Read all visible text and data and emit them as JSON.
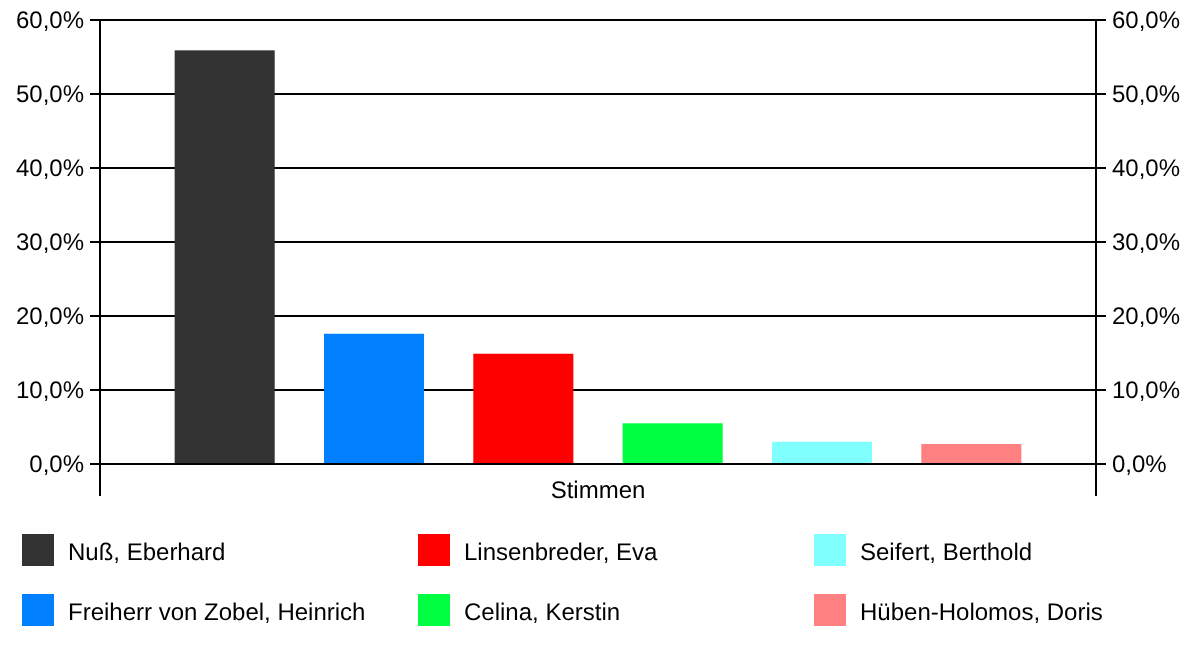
{
  "chart_data": {
    "type": "bar",
    "categories": [
      "Stimmen"
    ],
    "series": [
      {
        "name": "Nuß, Eberhard",
        "color": "#333333",
        "values": [
          55.9
        ]
      },
      {
        "name": "Freiherr von Zobel, Heinrich",
        "color": "#0080ff",
        "values": [
          17.6
        ]
      },
      {
        "name": "Linsenbreder, Eva",
        "color": "#ff0000",
        "values": [
          14.9
        ]
      },
      {
        "name": "Celina, Kerstin",
        "color": "#00ff40",
        "values": [
          5.5
        ]
      },
      {
        "name": "Seifert, Berthold",
        "color": "#80ffff",
        "values": [
          3.0
        ]
      },
      {
        "name": "Hüben-Holomos, Doris",
        "color": "#ff8080",
        "values": [
          2.7
        ]
      }
    ],
    "ylim": [
      0,
      60
    ],
    "yticks": [
      {
        "value": 0,
        "label": "0,0%"
      },
      {
        "value": 10,
        "label": "10,0%"
      },
      {
        "value": 20,
        "label": "20,0%"
      },
      {
        "value": 30,
        "label": "30,0%"
      },
      {
        "value": 40,
        "label": "40,0%"
      },
      {
        "value": 50,
        "label": "50,0%"
      },
      {
        "value": 60,
        "label": "60,0%"
      }
    ],
    "grid": "y",
    "legend": "bottom"
  }
}
